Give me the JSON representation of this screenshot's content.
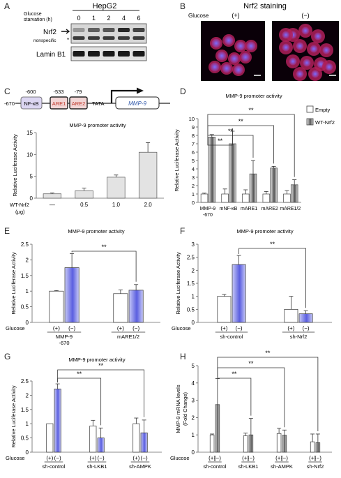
{
  "panels": {
    "A": {
      "letter": "A",
      "cell_line": "HepG2",
      "time_label_line1": "Glucose",
      "time_label_line2": "starvation (h)",
      "timepoints": [
        "0",
        "1",
        "2",
        "4",
        "6"
      ],
      "row1_label": "Nrf2",
      "row1_sub_label": "nonspecific",
      "row2_label": "Lamin B1",
      "nrf2_band_intensity": [
        0.25,
        0.55,
        0.6,
        0.85,
        0.7
      ]
    },
    "B": {
      "letter": "B",
      "title": "Nrf2 staining",
      "glucose_label": "Glucose",
      "condition_plus": "(+)",
      "condition_minus": "(−)"
    },
    "C": {
      "letter": "C",
      "promoter": {
        "start": "-670",
        "positions": [
          "-600",
          "-533",
          "-79"
        ],
        "elements": [
          "NF-κB",
          "ARE1",
          "ARE2"
        ],
        "tata": "TATA",
        "gene": "MMP-9"
      }
    },
    "D": {
      "letter": "D"
    },
    "E": {
      "letter": "E"
    },
    "F": {
      "letter": "F"
    },
    "G": {
      "letter": "G"
    },
    "H": {
      "letter": "H"
    }
  },
  "colors": {
    "blue_bar": "#5a5ee0",
    "blue_bar_light": "#c8caf6",
    "gray_bar": "#bdbdbd",
    "gray_dark": "#555555",
    "nfkb_box": "#dcd6f2",
    "are_box": "#f2d6d6",
    "are_text": "#c0392b",
    "gene_text": "#2c55a8"
  },
  "chart_data": [
    {
      "panel": "C",
      "type": "bar",
      "title": "MMP-9 promoter activity",
      "ylabel": "Relative Luciferase Activity",
      "xlabel": "WT-Nrf2 (μg)",
      "categories": [
        "—",
        "0.5",
        "1.0",
        "2.0"
      ],
      "values": [
        1.0,
        1.7,
        4.8,
        10.5
      ],
      "errors": [
        0.2,
        0.6,
        0.5,
        2.2
      ],
      "ylim": [
        0,
        15
      ],
      "yticks": [
        "0",
        "5",
        "10",
        "15"
      ]
    },
    {
      "panel": "D",
      "type": "bar",
      "title": "MMP-9 promoter activity",
      "ylabel": "Relative Luciferase Activity",
      "categories": [
        "MMP-9\n-670",
        "mNF-κB",
        "mARE1",
        "mARE2",
        "mARE1/2"
      ],
      "series": [
        {
          "name": "Empty",
          "values": [
            1.0,
            1.0,
            1.0,
            1.0,
            1.0
          ],
          "errors": [
            0.1,
            0.6,
            0.5,
            0.3,
            0.4
          ]
        },
        {
          "name": "WT-Nrf2",
          "values": [
            7.8,
            7.0,
            3.4,
            4.1,
            2.1
          ],
          "errors": [
            0.3,
            1.5,
            1.6,
            0.2,
            0.6
          ]
        }
      ],
      "ylim": [
        0,
        10
      ],
      "yticks": [
        "0",
        "1",
        "2",
        "3",
        "4",
        "5",
        "6",
        "7",
        "8",
        "9",
        "10"
      ],
      "significance": [
        "**",
        "**",
        "**",
        "**"
      ]
    },
    {
      "panel": "E",
      "type": "bar",
      "title": "MMP-9 promoter activity",
      "ylabel": "Relative Luciferase Activity",
      "row_label": "Glucose",
      "conditions": [
        "(+)",
        "(−)"
      ],
      "groups": [
        "MMP-9\n-670",
        "mARE1/2"
      ],
      "values": [
        1.0,
        1.75,
        0.92,
        1.03
      ],
      "errors": [
        0.02,
        0.45,
        0.12,
        0.18
      ],
      "ylim": [
        0,
        2.5
      ],
      "yticks": [
        "0",
        "0.5",
        "1",
        "1.5",
        "2",
        "2.5"
      ],
      "significance": [
        "**"
      ]
    },
    {
      "panel": "F",
      "type": "bar",
      "title": "MMP-9 promoter activity",
      "ylabel": "Relative Luciferase Activity",
      "row_label": "Glucose",
      "conditions": [
        "(+)",
        "(−)"
      ],
      "groups": [
        "sh-control",
        "sh-Nrf2"
      ],
      "values": [
        1.0,
        2.22,
        0.5,
        0.33
      ],
      "errors": [
        0.07,
        0.35,
        0.5,
        0.12
      ],
      "ylim": [
        0,
        3
      ],
      "yticks": [
        "0",
        "0.5",
        "1",
        "1.5",
        "2",
        "2.5",
        "3"
      ],
      "significance": [
        "**"
      ]
    },
    {
      "panel": "G",
      "type": "bar",
      "title": "MMP-9 promoter activity",
      "ylabel": "Relative Luciferase Activity",
      "row_label": "Glucose",
      "conditions": [
        "(+)",
        "(−)"
      ],
      "groups": [
        "sh-control",
        "sh-LKB1",
        "sh-AMPK"
      ],
      "values": [
        1.0,
        2.22,
        0.92,
        0.5,
        1.0,
        0.68
      ],
      "errors": [
        0.0,
        0.18,
        0.2,
        0.35,
        0.2,
        0.45
      ],
      "ylim": [
        0,
        2.5
      ],
      "yticks": [
        "0",
        "0.5",
        "1",
        "1.5",
        "2",
        "2.5"
      ],
      "significance": [
        "**",
        "**"
      ]
    },
    {
      "panel": "H",
      "type": "bar",
      "ylabel": "MMP-9 mRNA levels\n(Fold Change)",
      "row_label": "Glucose",
      "conditions": [
        "(+)",
        "(−)"
      ],
      "groups": [
        "sh-control",
        "sh-LKB1",
        "sh-AMPK",
        "sh-Nrf2"
      ],
      "values": [
        1.0,
        2.75,
        0.95,
        1.0,
        1.08,
        0.98,
        0.6,
        0.55
      ],
      "errors": [
        0.05,
        1.5,
        0.15,
        0.95,
        0.3,
        0.3,
        0.45,
        0.5
      ],
      "ylim": [
        0,
        5
      ],
      "yticks": [
        "0",
        "1",
        "2",
        "3",
        "4",
        "5"
      ],
      "significance": [
        "**",
        "**",
        "**"
      ]
    }
  ]
}
